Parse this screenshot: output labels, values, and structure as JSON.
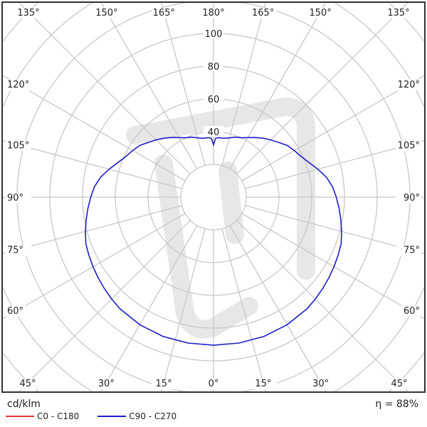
{
  "chart_data": {
    "type": "polar-line",
    "unit_label": "cd/klm",
    "efficiency_label": "η = 88%",
    "radial_ticks": [
      40,
      60,
      80,
      100
    ],
    "radial_grid_step": 20,
    "angle_grid_step_deg": 15,
    "angle_labels": {
      "top": [
        "135°",
        "150°",
        "165°",
        "180°",
        "165°",
        "150°",
        "135°"
      ],
      "left": [
        "120°",
        "105°",
        "90°",
        "75°",
        "60°"
      ],
      "right": [
        "120°",
        "105°",
        "90°",
        "75°",
        "60°"
      ],
      "bottom": [
        "45°",
        "30°",
        "15°",
        "0°",
        "15°",
        "30°",
        "45°"
      ]
    },
    "grid": true,
    "legend_placement": "bottom-left",
    "series": [
      {
        "name": "C0 - C180",
        "color": "#e53935",
        "visible_curve": false,
        "angles_deg": [],
        "values": []
      },
      {
        "name": "C90 - C270",
        "color": "#1f1fc8",
        "visible_curve": true,
        "angles_deg": [
          0,
          10,
          20,
          30,
          40,
          45,
          50,
          55,
          60,
          65,
          70,
          75,
          80,
          85,
          90,
          95,
          100,
          105,
          110,
          115,
          120,
          125,
          130,
          135,
          140,
          145,
          150,
          155,
          160,
          165,
          170,
          175,
          178,
          180
        ],
        "values": [
          90.5,
          90.5,
          90.5,
          90,
          89,
          88,
          87,
          86,
          85,
          84,
          83,
          81,
          79,
          77,
          75,
          73,
          70,
          66,
          62,
          59,
          57,
          55,
          52,
          49.5,
          47,
          44.5,
          42,
          40,
          39,
          37.5,
          36.5,
          36.5,
          36,
          32
        ],
        "symmetric": true
      }
    ]
  },
  "colors": {
    "grid": "#c8c8c8",
    "frame": "#333333"
  }
}
